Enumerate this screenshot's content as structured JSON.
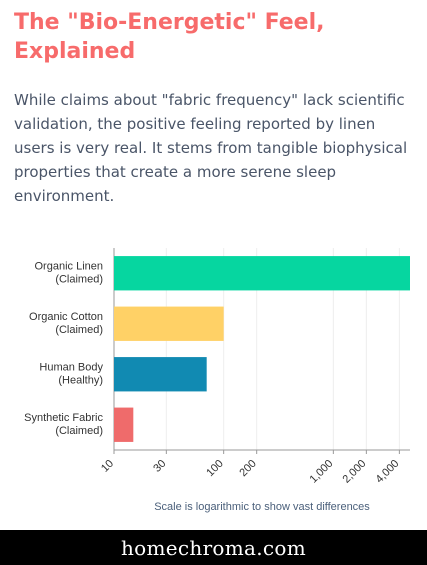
{
  "article": {
    "title": "The \"Bio-Energetic\" Feel, Explained",
    "intro": "While claims about \"fabric frequency\" lack scientific validation, the positive feeling reported by linen users is very real. It stems from tangible biophysical properties that create a more serene sleep environment."
  },
  "chart_data": {
    "type": "bar",
    "orientation": "horizontal",
    "scale": "log",
    "categories": [
      [
        "Organic Linen",
        "(Claimed)"
      ],
      [
        "Organic Cotton",
        "(Claimed)"
      ],
      [
        "Human Body",
        "(Healthy)"
      ],
      [
        "Synthetic Fabric",
        "(Claimed)"
      ]
    ],
    "values": [
      5000,
      100,
      70,
      15
    ],
    "colors": [
      "#06d6a0",
      "#ffd166",
      "#118ab2",
      "#ef6b6b"
    ],
    "xlim": [
      10,
      5000
    ],
    "ticks": [
      10,
      30,
      100,
      200,
      1000,
      2000,
      4000
    ],
    "tick_labels": [
      "10",
      "30",
      "100",
      "200",
      "1,000",
      "2,000",
      "4,000"
    ],
    "xlabel": "Scale is logarithmic to show vast differences",
    "grid": true
  },
  "footer": {
    "site": "homechroma.com"
  }
}
